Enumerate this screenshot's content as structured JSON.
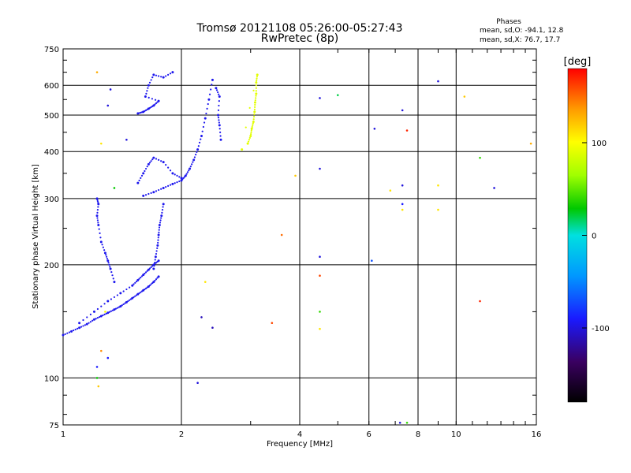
{
  "chart_data": {
    "type": "scatter",
    "title": "Tromsø 20121108 05:26:00-05:27:43",
    "subtitle": "RwPretec (8p)",
    "xlabel": "Frequency [MHz]",
    "ylabel": "Stationary phase Virtual Height [km]",
    "x_scale": "log",
    "y_scale": "log",
    "xlim": [
      1,
      16
    ],
    "ylim": [
      75,
      750
    ],
    "x_ticks": [
      1,
      2,
      4,
      6,
      8,
      10,
      16
    ],
    "y_ticks": [
      75,
      100,
      200,
      300,
      400,
      500,
      600,
      750
    ],
    "grid": true,
    "stats": {
      "title": "Phases",
      "line_o": "mean, sd,O: -94.1, 12.8",
      "line_x": "mean, sd,X:  76.7, 17.7"
    },
    "colorbar": {
      "label": "[deg]",
      "range": [
        -180,
        180
      ],
      "ticks": [
        100,
        0,
        -100
      ]
    },
    "traces": [
      {
        "name": "",
        "phase": -95,
        "points": [
          [
            1.0,
            130
          ],
          [
            1.05,
            133
          ],
          [
            1.1,
            136
          ],
          [
            1.15,
            139
          ],
          [
            1.2,
            143
          ],
          [
            1.25,
            146
          ],
          [
            1.3,
            149
          ],
          [
            1.35,
            152
          ],
          [
            1.4,
            155
          ],
          [
            1.45,
            159
          ],
          [
            1.5,
            163
          ],
          [
            1.55,
            167
          ],
          [
            1.6,
            171
          ],
          [
            1.65,
            175
          ],
          [
            1.7,
            180
          ],
          [
            1.75,
            186
          ]
        ]
      },
      {
        "name": "",
        "phase": -95,
        "points": [
          [
            1.1,
            140
          ],
          [
            1.2,
            150
          ],
          [
            1.3,
            160
          ],
          [
            1.4,
            168
          ],
          [
            1.5,
            176
          ],
          [
            1.55,
            182
          ],
          [
            1.6,
            188
          ],
          [
            1.65,
            194
          ],
          [
            1.7,
            200
          ],
          [
            1.75,
            205
          ]
        ]
      },
      {
        "name": "",
        "phase": -95,
        "points": [
          [
            1.7,
            195
          ],
          [
            1.72,
            210
          ],
          [
            1.74,
            225
          ],
          [
            1.75,
            240
          ],
          [
            1.76,
            255
          ],
          [
            1.78,
            270
          ],
          [
            1.8,
            290
          ]
        ]
      },
      {
        "name": "",
        "phase": -95,
        "points": [
          [
            1.6,
            305
          ],
          [
            1.7,
            312
          ],
          [
            1.8,
            320
          ],
          [
            1.9,
            328
          ],
          [
            2.0,
            335
          ],
          [
            2.05,
            345
          ],
          [
            2.1,
            360
          ],
          [
            2.15,
            380
          ],
          [
            2.2,
            405
          ],
          [
            2.25,
            440
          ],
          [
            2.3,
            490
          ],
          [
            2.35,
            550
          ],
          [
            2.4,
            620
          ]
        ]
      },
      {
        "name": "",
        "phase": -95,
        "points": [
          [
            1.55,
            330
          ],
          [
            1.6,
            350
          ],
          [
            1.65,
            370
          ],
          [
            1.7,
            385
          ],
          [
            1.8,
            375
          ],
          [
            1.9,
            350
          ],
          [
            2.0,
            340
          ]
        ]
      },
      {
        "name": "",
        "phase": -95,
        "points": [
          [
            1.55,
            505
          ],
          [
            1.6,
            510
          ],
          [
            1.65,
            520
          ],
          [
            1.7,
            530
          ],
          [
            1.75,
            545
          ],
          [
            1.62,
            560
          ],
          [
            1.65,
            600
          ],
          [
            1.7,
            640
          ],
          [
            1.8,
            630
          ],
          [
            1.9,
            650
          ]
        ]
      },
      {
        "name": "",
        "phase": -95,
        "points": [
          [
            1.22,
            300
          ],
          [
            1.23,
            290
          ],
          [
            1.22,
            270
          ],
          [
            1.23,
            255
          ],
          [
            1.25,
            230
          ],
          [
            1.28,
            215
          ],
          [
            1.3,
            205
          ],
          [
            1.32,
            195
          ],
          [
            1.35,
            180
          ]
        ]
      },
      {
        "name": "",
        "phase": -95,
        "points": [
          [
            2.45,
            590
          ],
          [
            2.5,
            560
          ],
          [
            2.48,
            500
          ],
          [
            2.5,
            470
          ],
          [
            2.52,
            430
          ]
        ]
      },
      {
        "name": "",
        "phase": 90,
        "points": [
          [
            2.95,
            420
          ],
          [
            3.0,
            440
          ],
          [
            3.02,
            460
          ],
          [
            3.05,
            480
          ],
          [
            3.07,
            510
          ],
          [
            3.08,
            540
          ],
          [
            3.1,
            570
          ],
          [
            3.1,
            610
          ],
          [
            3.12,
            640
          ],
          [
            2.85,
            405
          ]
        ]
      }
    ],
    "scatter": [
      {
        "x": 1.22,
        "y": 650,
        "phase": 130
      },
      {
        "x": 1.32,
        "y": 585,
        "phase": -100
      },
      {
        "x": 1.3,
        "y": 530,
        "phase": -100
      },
      {
        "x": 1.45,
        "y": 430,
        "phase": -100
      },
      {
        "x": 1.25,
        "y": 420,
        "phase": 110
      },
      {
        "x": 1.35,
        "y": 320,
        "phase": 30
      },
      {
        "x": 1.28,
        "y": 150,
        "phase": 100
      },
      {
        "x": 1.25,
        "y": 118,
        "phase": 140
      },
      {
        "x": 1.3,
        "y": 113,
        "phase": -90
      },
      {
        "x": 1.22,
        "y": 107,
        "phase": -90
      },
      {
        "x": 1.22,
        "y": 100,
        "phase": 30
      },
      {
        "x": 1.23,
        "y": 95,
        "phase": 120
      },
      {
        "x": 2.3,
        "y": 180,
        "phase": 110
      },
      {
        "x": 2.25,
        "y": 145,
        "phase": -110
      },
      {
        "x": 2.4,
        "y": 136,
        "phase": -110
      },
      {
        "x": 2.2,
        "y": 97,
        "phase": -100
      },
      {
        "x": 3.6,
        "y": 240,
        "phase": 150
      },
      {
        "x": 3.4,
        "y": 140,
        "phase": 160
      },
      {
        "x": 3.9,
        "y": 345,
        "phase": 120
      },
      {
        "x": 4.5,
        "y": 555,
        "phase": -100
      },
      {
        "x": 4.5,
        "y": 360,
        "phase": -100
      },
      {
        "x": 4.5,
        "y": 210,
        "phase": -100
      },
      {
        "x": 4.5,
        "y": 187,
        "phase": 160
      },
      {
        "x": 4.5,
        "y": 150,
        "phase": 40
      },
      {
        "x": 4.5,
        "y": 135,
        "phase": 110
      },
      {
        "x": 5.0,
        "y": 565,
        "phase": 20
      },
      {
        "x": 6.2,
        "y": 460,
        "phase": -100
      },
      {
        "x": 6.1,
        "y": 205,
        "phase": -70
      },
      {
        "x": 6.8,
        "y": 315,
        "phase": 110
      },
      {
        "x": 7.3,
        "y": 515,
        "phase": -100
      },
      {
        "x": 7.3,
        "y": 325,
        "phase": -100
      },
      {
        "x": 7.3,
        "y": 290,
        "phase": -90
      },
      {
        "x": 7.3,
        "y": 280,
        "phase": 110
      },
      {
        "x": 7.5,
        "y": 455,
        "phase": 170
      },
      {
        "x": 9.0,
        "y": 325,
        "phase": 110
      },
      {
        "x": 9.0,
        "y": 280,
        "phase": 110
      },
      {
        "x": 9.0,
        "y": 615,
        "phase": -100
      },
      {
        "x": 10.5,
        "y": 560,
        "phase": 120
      },
      {
        "x": 11.5,
        "y": 385,
        "phase": 40
      },
      {
        "x": 11.5,
        "y": 160,
        "phase": 170
      },
      {
        "x": 12.5,
        "y": 320,
        "phase": -100
      },
      {
        "x": 15.5,
        "y": 420,
        "phase": 130
      },
      {
        "x": 7.2,
        "y": 76,
        "phase": -100
      },
      {
        "x": 7.5,
        "y": 76,
        "phase": 40
      }
    ]
  }
}
